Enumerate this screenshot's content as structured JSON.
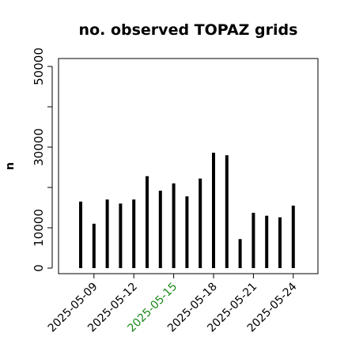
{
  "chart_data": {
    "type": "bar",
    "title": "no. observed TOPAZ grids",
    "xlabel": "",
    "ylabel": "n",
    "ylim": [
      0,
      50000
    ],
    "yticks": [
      0,
      10000,
      30000,
      50000
    ],
    "grid": false,
    "x": [
      "2025-05-08",
      "2025-05-09",
      "2025-05-10",
      "2025-05-11",
      "2025-05-12",
      "2025-05-13",
      "2025-05-14",
      "2025-05-15",
      "2025-05-16",
      "2025-05-17",
      "2025-05-18",
      "2025-05-19",
      "2025-05-20",
      "2025-05-21",
      "2025-05-22",
      "2025-05-23",
      "2025-05-24"
    ],
    "values": [
      16500,
      11000,
      17000,
      16000,
      17000,
      22800,
      19200,
      21000,
      17800,
      22200,
      28600,
      28000,
      7200,
      13700,
      13000,
      12600,
      15500
    ],
    "xtick_labels": [
      {
        "label": "2025-05-09",
        "color": "#000000"
      },
      {
        "label": "2025-05-12",
        "color": "#000000"
      },
      {
        "label": "2025-05-15",
        "color": "#1a8a1a"
      },
      {
        "label": "2025-05-18",
        "color": "#000000"
      },
      {
        "label": "2025-05-21",
        "color": "#000000"
      },
      {
        "label": "2025-05-24",
        "color": "#000000"
      }
    ],
    "colors": {
      "bars": "#000000",
      "axis": "#000000",
      "highlight_tick": "#1a8a1a"
    }
  }
}
